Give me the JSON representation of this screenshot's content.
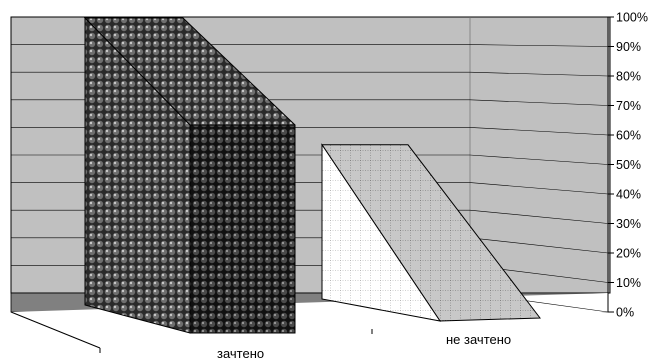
{
  "chart_data": {
    "type": "bar",
    "subtype": "3d-wedge",
    "categories": [
      "зачтено",
      "не зачтено"
    ],
    "series": [
      {
        "values": [
          100,
          0
        ]
      },
      {
        "values": [
          0,
          68
        ]
      }
    ],
    "title": "",
    "xlabel": "",
    "ylabel": "",
    "ylim": [
      0,
      100
    ],
    "y_tick_labels": [
      "0%",
      "10%",
      "20%",
      "30%",
      "40%",
      "50%",
      "60%",
      "70%",
      "80%",
      "90%",
      "100%"
    ],
    "y_axis_position": "right",
    "grid": true,
    "legend": "none",
    "colors": {
      "back_wall": "#c0c0c0",
      "floor": "#808080",
      "gridline": "#000000",
      "series_1_front": "#1a1a1a",
      "series_1_side": "#4a4a4a",
      "series_2_front": "#ffffff",
      "series_2_side": "#c8c8c8"
    }
  }
}
